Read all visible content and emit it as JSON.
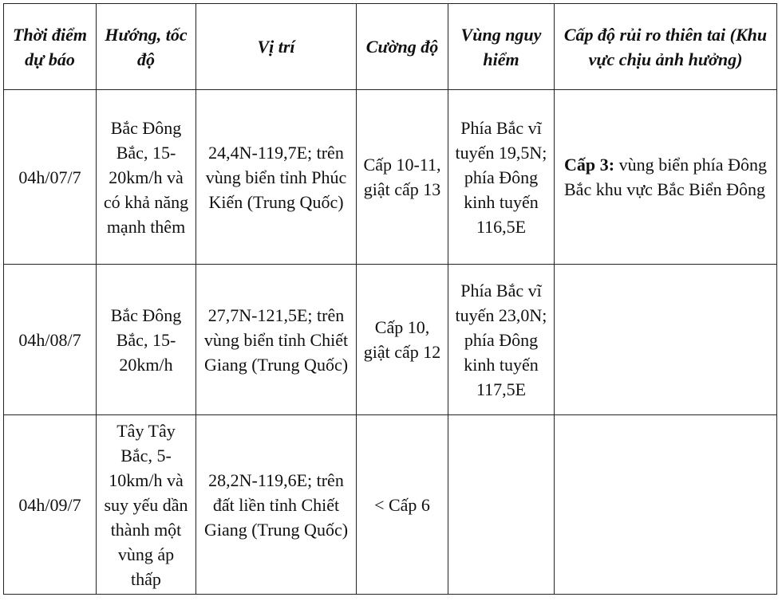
{
  "headers": [
    "Thời điểm dự báo",
    "Hướng, tốc độ",
    "Vị trí",
    "Cường độ",
    "Vùng nguy hiểm",
    "Cấp độ rủi ro thiên tai (Khu vực chịu ảnh hưởng)"
  ],
  "rows": [
    {
      "time": "04h/07/7",
      "direction": "Bắc Đông Bắc, 15-20km/h và có khả năng mạnh thêm",
      "position": "24,4N-119,7E; trên vùng biển tỉnh Phúc Kiến (Trung Quốc)",
      "intensity": "Cấp 10-11, giật cấp 13",
      "danger": "Phía Bắc vĩ tuyến 19,5N; phía Đông kinh tuyến 116,5E",
      "risk_level": "Cấp 3:",
      "risk_area": " vùng biển phía Đông Bắc khu vực Bắc Biển Đông"
    },
    {
      "time": "04h/08/7",
      "direction": "Bắc Đông Bắc, 15-20km/h",
      "position": "27,7N-121,5E; trên vùng biển tỉnh Chiết Giang (Trung Quốc)",
      "intensity": "Cấp 10, giật cấp 12",
      "danger": "Phía Bắc vĩ tuyến 23,0N; phía Đông kinh tuyến 117,5E",
      "risk_level": "",
      "risk_area": ""
    },
    {
      "time": "04h/09/7",
      "direction": "Tây Tây Bắc, 5-10km/h và suy yếu dần thành một vùng áp thấp",
      "position": "28,2N-119,6E; trên đất liền tỉnh Chiết Giang (Trung Quốc)",
      "intensity": "< Cấp 6",
      "danger": "",
      "risk_level": "",
      "risk_area": ""
    }
  ]
}
